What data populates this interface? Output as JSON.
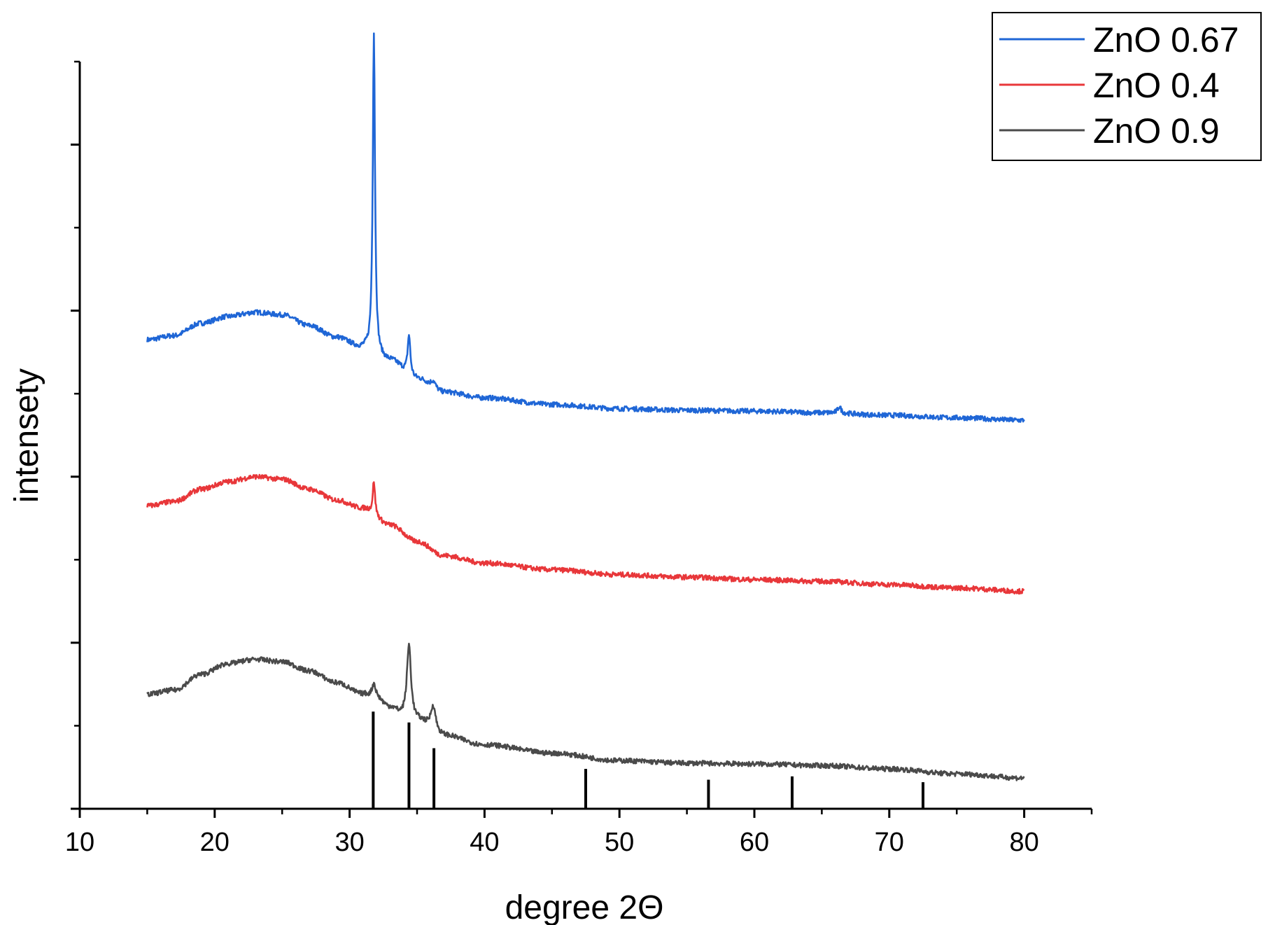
{
  "chart_data": {
    "type": "line",
    "title": "",
    "xlabel": "degree 2Θ",
    "ylabel": "intensety",
    "xlim": [
      10,
      85
    ],
    "ylim": [
      0,
      9
    ],
    "x_ticks": [
      10,
      20,
      30,
      40,
      50,
      60,
      70,
      80
    ],
    "y_tick_labels_shown": false,
    "grid": false,
    "legend_position": "top-right",
    "series": [
      {
        "name": "ZnO 0.67",
        "color": "#1f66d6",
        "x_range": [
          15,
          80
        ],
        "baseline_points": [
          [
            15,
            5.65
          ],
          [
            17,
            5.7
          ],
          [
            19,
            5.85
          ],
          [
            21,
            5.93
          ],
          [
            23,
            5.98
          ],
          [
            25,
            5.95
          ],
          [
            27,
            5.82
          ],
          [
            29,
            5.68
          ],
          [
            31,
            5.55
          ],
          [
            33,
            5.4
          ],
          [
            35,
            5.18
          ],
          [
            37,
            5.02
          ],
          [
            40,
            4.95
          ],
          [
            45,
            4.87
          ],
          [
            50,
            4.82
          ],
          [
            55,
            4.8
          ],
          [
            60,
            4.79
          ],
          [
            65,
            4.77
          ],
          [
            70,
            4.74
          ],
          [
            75,
            4.71
          ],
          [
            80,
            4.68
          ]
        ],
        "peaks": [
          {
            "x": 31.8,
            "height": 3.85,
            "width": 0.1
          },
          {
            "x": 34.4,
            "height": 0.48,
            "width": 0.12
          },
          {
            "x": 36.2,
            "height": 0.08,
            "width": 0.2
          },
          {
            "x": 66.3,
            "height": 0.08,
            "width": 0.15
          }
        ],
        "noise": 0.03
      },
      {
        "name": "ZnO 0.4",
        "color": "#e8373a",
        "x_range": [
          15,
          80
        ],
        "baseline_points": [
          [
            15,
            3.65
          ],
          [
            17,
            3.7
          ],
          [
            19,
            3.85
          ],
          [
            21,
            3.94
          ],
          [
            23,
            4.0
          ],
          [
            25,
            3.97
          ],
          [
            27,
            3.85
          ],
          [
            29,
            3.72
          ],
          [
            31,
            3.62
          ],
          [
            33,
            3.42
          ],
          [
            35,
            3.22
          ],
          [
            37,
            3.05
          ],
          [
            40,
            2.96
          ],
          [
            45,
            2.88
          ],
          [
            50,
            2.82
          ],
          [
            55,
            2.79
          ],
          [
            60,
            2.76
          ],
          [
            65,
            2.74
          ],
          [
            70,
            2.7
          ],
          [
            75,
            2.66
          ],
          [
            80,
            2.62
          ]
        ],
        "peaks": [
          {
            "x": 31.8,
            "height": 0.4,
            "width": 0.1
          }
        ],
        "noise": 0.03
      },
      {
        "name": "ZnO 0.9",
        "color": "#4a4a4a",
        "x_range": [
          15,
          80
        ],
        "baseline_points": [
          [
            15,
            1.38
          ],
          [
            17,
            1.43
          ],
          [
            19,
            1.62
          ],
          [
            21,
            1.75
          ],
          [
            23,
            1.8
          ],
          [
            25,
            1.77
          ],
          [
            27,
            1.66
          ],
          [
            29,
            1.52
          ],
          [
            31,
            1.38
          ],
          [
            32,
            1.32
          ],
          [
            33,
            1.22
          ],
          [
            34,
            1.12
          ],
          [
            35,
            1.06
          ],
          [
            37,
            0.88
          ],
          [
            40,
            0.77
          ],
          [
            45,
            0.67
          ],
          [
            50,
            0.58
          ],
          [
            55,
            0.55
          ],
          [
            60,
            0.54
          ],
          [
            65,
            0.52
          ],
          [
            70,
            0.48
          ],
          [
            75,
            0.42
          ],
          [
            80,
            0.37
          ]
        ],
        "peaks": [
          {
            "x": 31.8,
            "height": 0.18,
            "width": 0.18
          },
          {
            "x": 34.4,
            "height": 0.88,
            "width": 0.18
          },
          {
            "x": 36.2,
            "height": 0.3,
            "width": 0.22
          }
        ],
        "noise": 0.03
      }
    ],
    "reference_lines": {
      "color": "#000000",
      "lines": [
        {
          "x": 31.75,
          "height": 1.17
        },
        {
          "x": 34.4,
          "height": 1.04
        },
        {
          "x": 36.25,
          "height": 0.73
        },
        {
          "x": 47.5,
          "height": 0.48
        },
        {
          "x": 56.6,
          "height": 0.35
        },
        {
          "x": 62.8,
          "height": 0.39
        },
        {
          "x": 72.5,
          "height": 0.32
        }
      ]
    }
  }
}
